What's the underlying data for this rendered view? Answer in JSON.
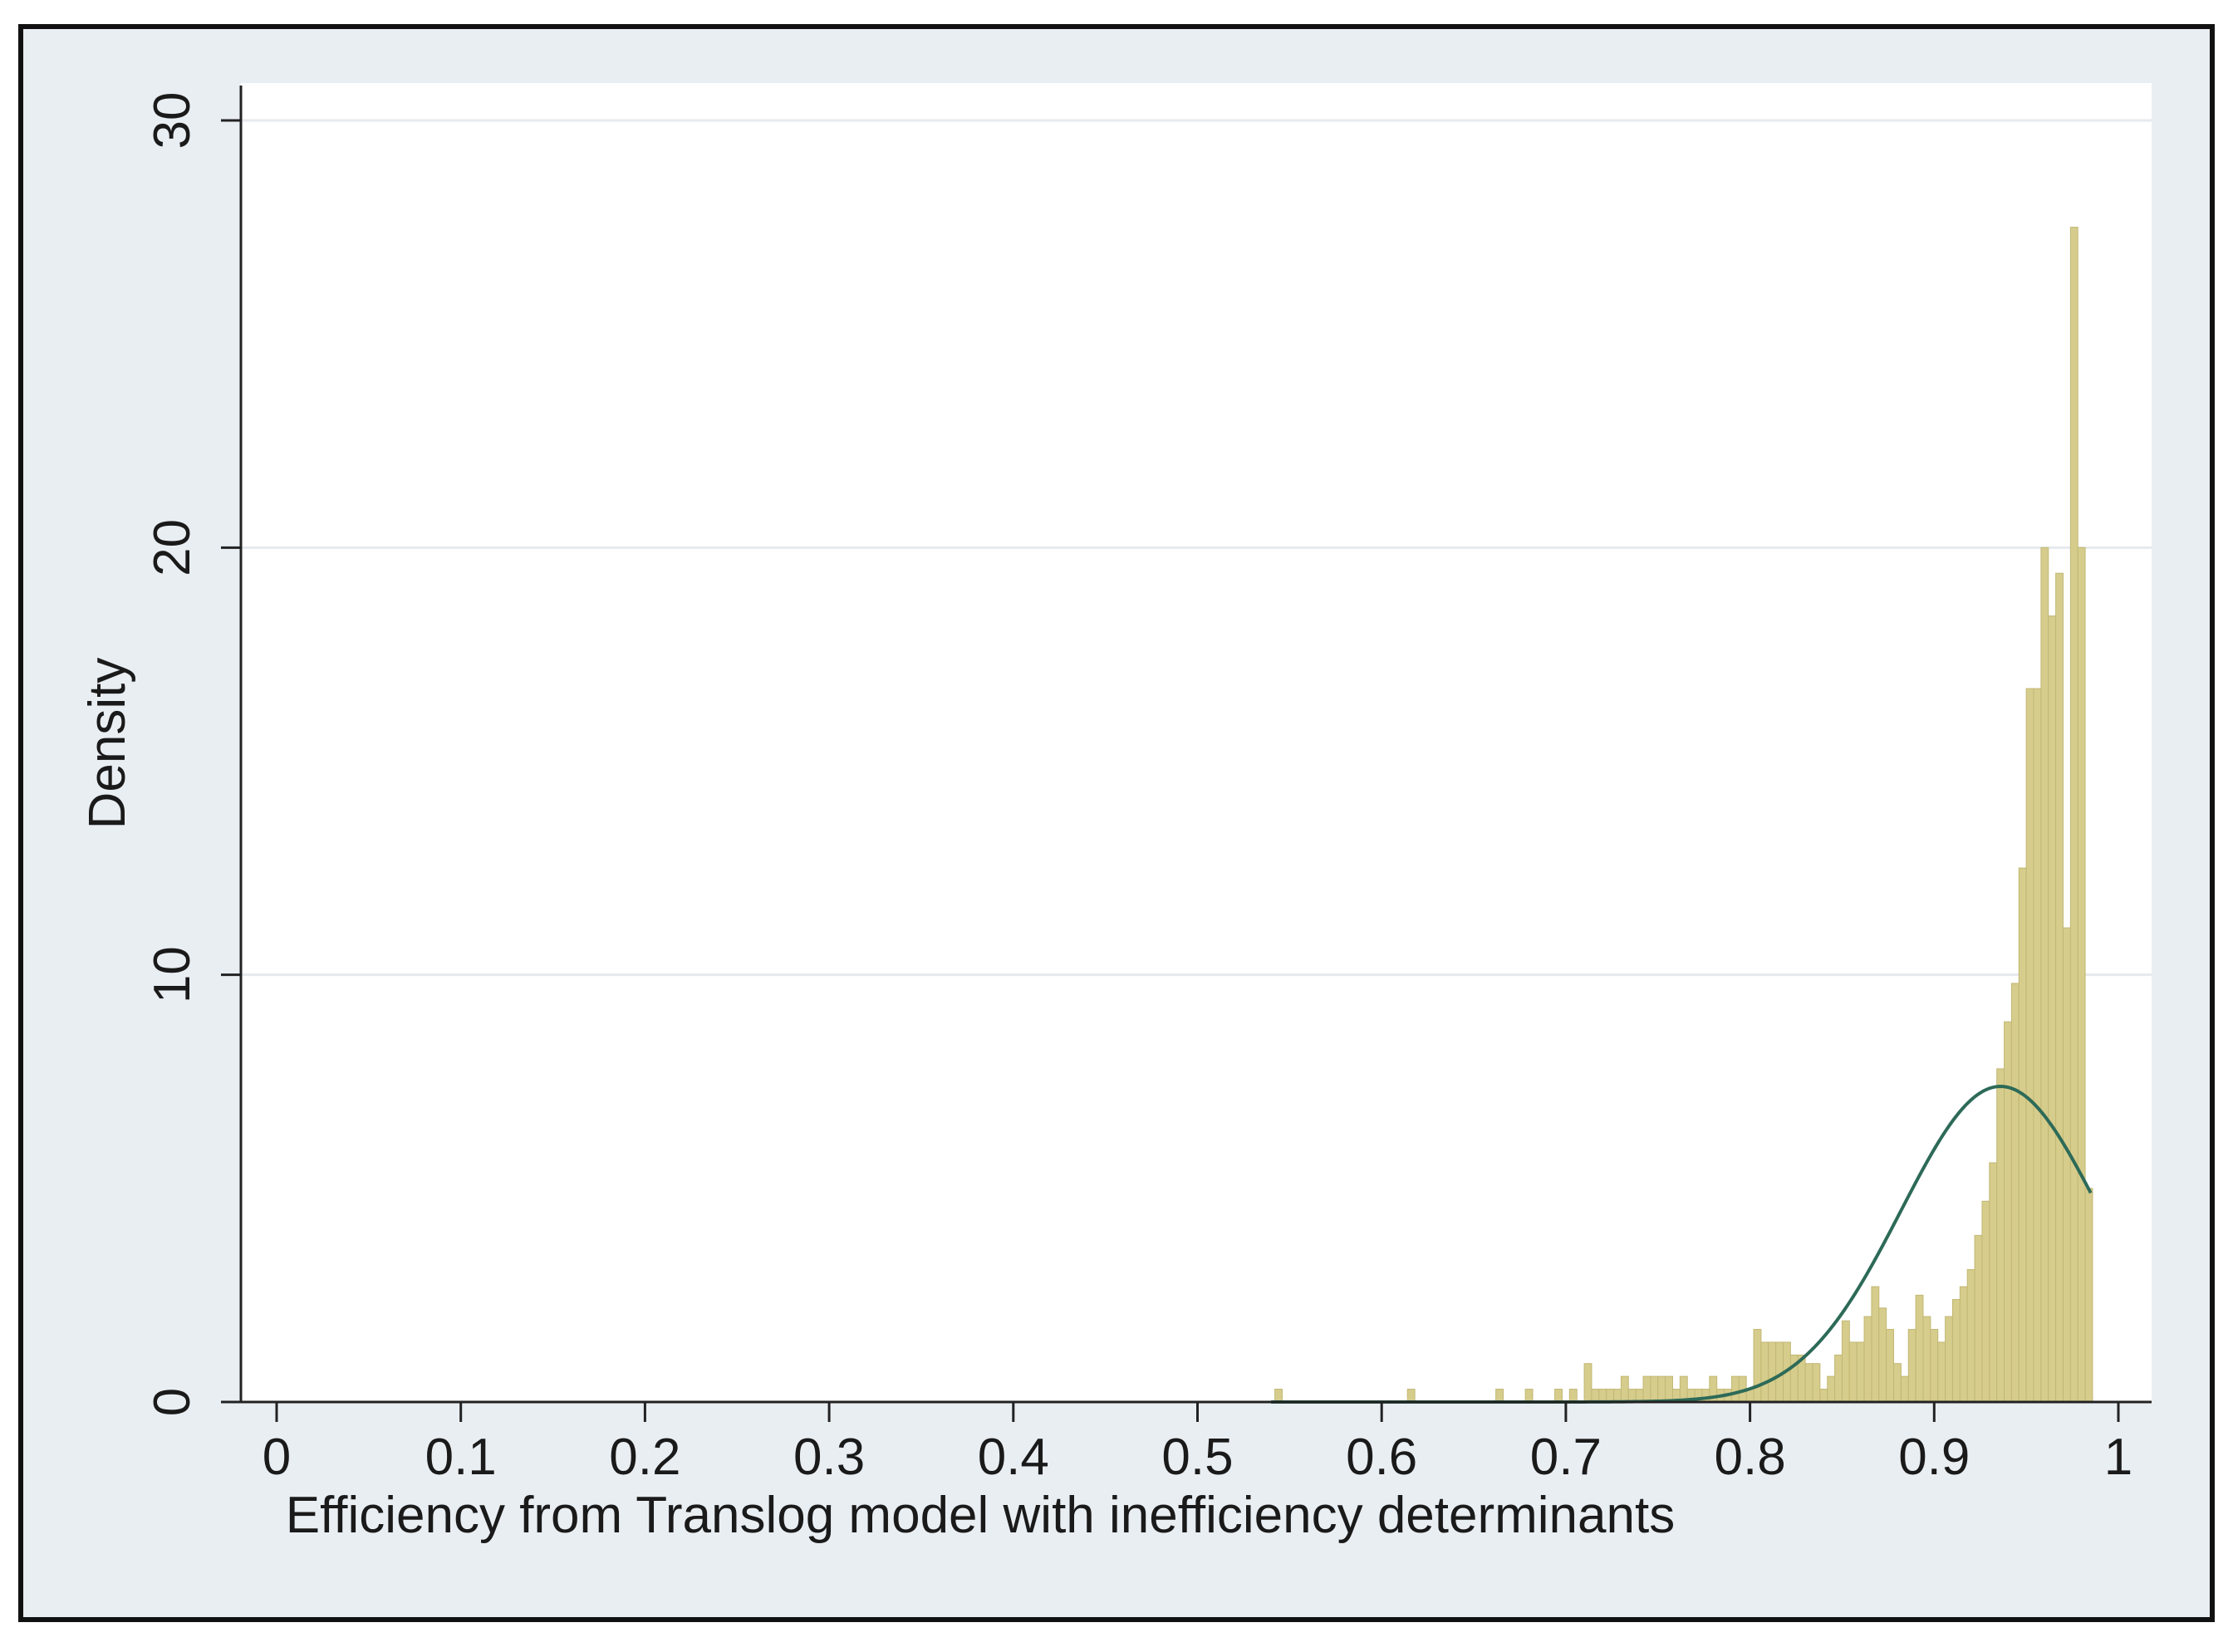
{
  "chart_data": {
    "type": "bar",
    "xlabel": "Efficiency from Translog model with inefficiency determinants",
    "ylabel": "Density",
    "xlim": [
      0,
      1
    ],
    "ylim": [
      0,
      30
    ],
    "x_ticks": [
      "0",
      "0.1",
      "0.2",
      "0.3",
      "0.4",
      "0.5",
      "0.6",
      "0.7",
      "0.8",
      "0.9",
      "1"
    ],
    "y_ticks": [
      "0",
      "10",
      "20",
      "30"
    ],
    "grid": true,
    "legend": "none",
    "colors": {
      "outer_background": "#e9eef3",
      "plot_background": "#ffffff",
      "bar_fill": "#d6cc8c",
      "bar_edge": "#c2b874",
      "curve": "#2d6a58",
      "gridline": "#e6eaee"
    },
    "histogram": {
      "bin_width": 0.004,
      "bins": [
        [
          0.542,
          0.3
        ],
        [
          0.614,
          0.3
        ],
        [
          0.662,
          0.3
        ],
        [
          0.678,
          0.3
        ],
        [
          0.694,
          0.3
        ],
        [
          0.702,
          0.3
        ],
        [
          0.71,
          0.9
        ],
        [
          0.714,
          0.3
        ],
        [
          0.718,
          0.3
        ],
        [
          0.722,
          0.3
        ],
        [
          0.726,
          0.3
        ],
        [
          0.73,
          0.6
        ],
        [
          0.734,
          0.3
        ],
        [
          0.738,
          0.3
        ],
        [
          0.742,
          0.6
        ],
        [
          0.746,
          0.6
        ],
        [
          0.75,
          0.6
        ],
        [
          0.754,
          0.6
        ],
        [
          0.758,
          0.3
        ],
        [
          0.762,
          0.6
        ],
        [
          0.766,
          0.3
        ],
        [
          0.77,
          0.3
        ],
        [
          0.774,
          0.3
        ],
        [
          0.778,
          0.6
        ],
        [
          0.782,
          0.3
        ],
        [
          0.786,
          0.3
        ],
        [
          0.79,
          0.6
        ],
        [
          0.794,
          0.6
        ],
        [
          0.798,
          0.3
        ],
        [
          0.802,
          1.7
        ],
        [
          0.806,
          1.4
        ],
        [
          0.81,
          1.4
        ],
        [
          0.814,
          1.4
        ],
        [
          0.818,
          1.4
        ],
        [
          0.822,
          1.1
        ],
        [
          0.826,
          1.1
        ],
        [
          0.83,
          0.9
        ],
        [
          0.834,
          0.9
        ],
        [
          0.838,
          0.3
        ],
        [
          0.842,
          0.6
        ],
        [
          0.846,
          1.1
        ],
        [
          0.85,
          1.9
        ],
        [
          0.854,
          1.4
        ],
        [
          0.858,
          1.4
        ],
        [
          0.862,
          2.0
        ],
        [
          0.866,
          2.7
        ],
        [
          0.87,
          2.2
        ],
        [
          0.874,
          1.7
        ],
        [
          0.878,
          0.9
        ],
        [
          0.882,
          0.6
        ],
        [
          0.886,
          1.7
        ],
        [
          0.89,
          2.5
        ],
        [
          0.894,
          2.0
        ],
        [
          0.898,
          1.7
        ],
        [
          0.902,
          1.4
        ],
        [
          0.906,
          2.0
        ],
        [
          0.91,
          2.4
        ],
        [
          0.914,
          2.7
        ],
        [
          0.918,
          3.1
        ],
        [
          0.922,
          3.9
        ],
        [
          0.926,
          4.7
        ],
        [
          0.93,
          5.6
        ],
        [
          0.934,
          7.8
        ],
        [
          0.938,
          8.9
        ],
        [
          0.942,
          9.8
        ],
        [
          0.946,
          12.5
        ],
        [
          0.95,
          16.7
        ],
        [
          0.954,
          16.7
        ],
        [
          0.958,
          20.0
        ],
        [
          0.962,
          18.4
        ],
        [
          0.966,
          19.4
        ],
        [
          0.97,
          11.1
        ],
        [
          0.974,
          27.5
        ],
        [
          0.978,
          20.0
        ],
        [
          0.982,
          5.0
        ]
      ]
    },
    "normal_curve": {
      "mean": 0.936,
      "sd": 0.054,
      "x_range": [
        0.54,
        0.985
      ]
    }
  }
}
